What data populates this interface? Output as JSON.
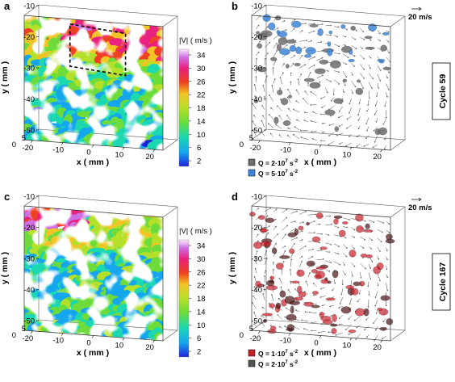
{
  "panels": [
    {
      "label": "a",
      "type": "velocity",
      "ylabel": "y ( mm )",
      "xlabel": "x ( mm )",
      "yticks": [
        "-10",
        "-20",
        "-30",
        "-40",
        "-50"
      ],
      "xticks": [
        "-20",
        "-10",
        "0",
        "10",
        "20"
      ],
      "zticks": [
        "0",
        "5"
      ],
      "colorbar": {
        "title": "|V| ( m/s )",
        "ticks": [
          "34",
          "30",
          "26",
          "22",
          "18",
          "14",
          "10",
          "6",
          "2"
        ]
      }
    },
    {
      "label": "b",
      "type": "q",
      "ylabel": "y ( mm )",
      "xlabel": "x ( mm )",
      "yticks": [
        "-10",
        "-20",
        "-30",
        "-40",
        "-50"
      ],
      "xticks": [
        "-20",
        "-10",
        "0",
        "10",
        "20"
      ],
      "zticks": [
        "0",
        "5"
      ],
      "scale": "20 m/s",
      "cycle": "Cycle 59",
      "legend": [
        {
          "text": "Q = 2·10",
          "sup": "7",
          "unit": " s",
          "unitsup": "-2",
          "color": "#6d6d6d"
        },
        {
          "text": "Q = 5·10",
          "sup": "7",
          "unit": " s",
          "unitsup": "-2",
          "color": "#3f86d8"
        }
      ]
    },
    {
      "label": "c",
      "type": "velocity",
      "ylabel": "y ( mm )",
      "xlabel": "x ( mm )",
      "yticks": [
        "-10",
        "-20",
        "-30",
        "-40",
        "-50"
      ],
      "xticks": [
        "-20",
        "-10",
        "0",
        "10",
        "20"
      ],
      "zticks": [
        "0",
        "5"
      ],
      "colorbar": {
        "title": "|V| ( m/s )",
        "ticks": [
          "34",
          "30",
          "26",
          "22",
          "18",
          "14",
          "10",
          "6",
          "2"
        ]
      }
    },
    {
      "label": "d",
      "type": "q",
      "ylabel": "y ( mm )",
      "xlabel": "x ( mm )",
      "yticks": [
        "-10",
        "-20",
        "-30",
        "-40",
        "-50"
      ],
      "xticks": [
        "-20",
        "-10",
        "0",
        "10",
        "20"
      ],
      "zticks": [
        "0",
        "5"
      ],
      "scale": "20 m/s",
      "cycle": "Cycle 167",
      "legend": [
        {
          "text": "Q = 1·10",
          "sup": "7",
          "unit": " s",
          "unitsup": "-2",
          "color": "#c8202a"
        },
        {
          "text": "Q = 2·10",
          "sup": "7",
          "unit": " s",
          "unitsup": "-2",
          "color": "#555555"
        }
      ]
    }
  ],
  "colors": {
    "colormap": [
      "#1e22d6",
      "#15a6ee",
      "#1bd8b0",
      "#6ddc3a",
      "#b5e02a",
      "#f3c425",
      "#ee4020",
      "#e8207e",
      "#cf6de3",
      "#ffffff"
    ],
    "q_blue": "#3f86d8",
    "q_gray": "#6d6d6d",
    "q_red": "#c8202a",
    "q_darkred": "#4a1414"
  }
}
